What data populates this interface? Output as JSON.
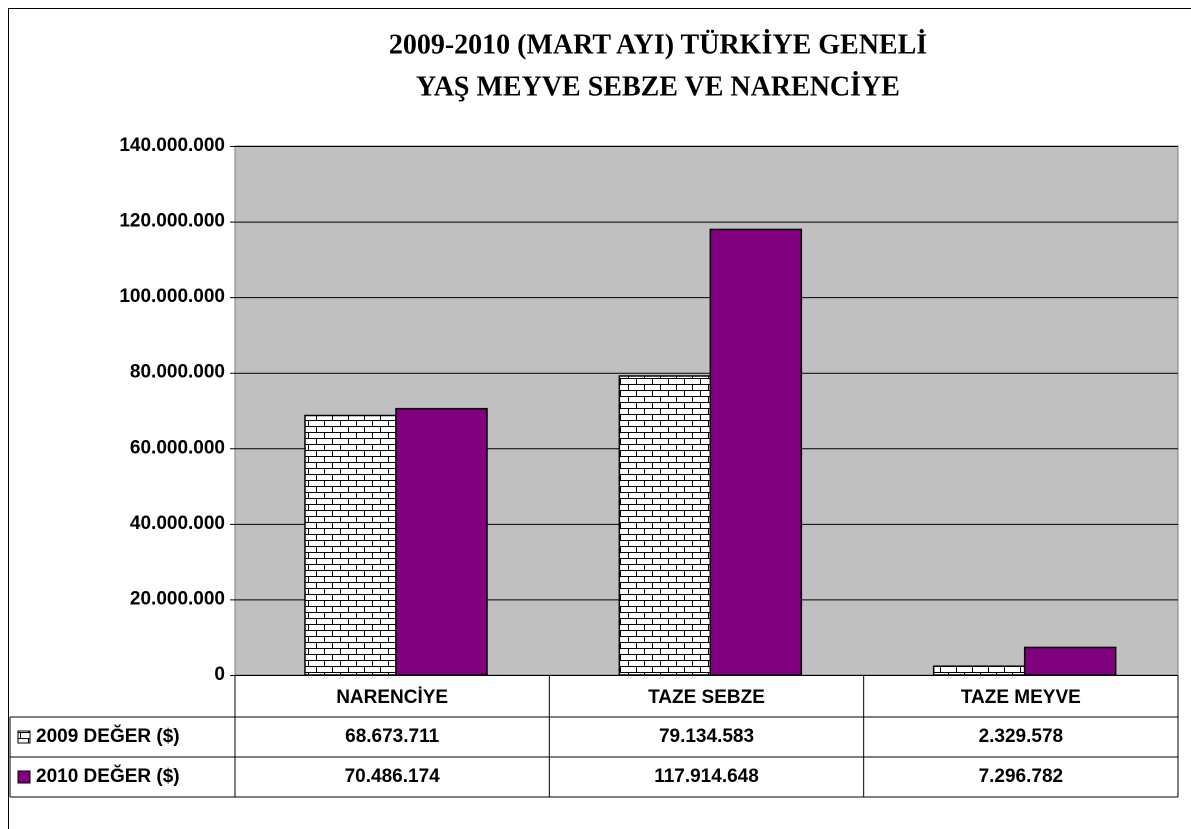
{
  "chart_data": {
    "type": "bar",
    "title": [
      "2009-2010 (MART AYI) TÜRKİYE GENELİ",
      "YAŞ MEYVE SEBZE VE NARENCİYE"
    ],
    "categories": [
      "NARENCİYE",
      "TAZE SEBZE",
      "TAZE MEYVE"
    ],
    "series": [
      {
        "name": "2009 DEĞER ($)",
        "color": "#ffffff",
        "pattern": "brick",
        "values": [
          68673711,
          79134583,
          2329578
        ],
        "value_labels": [
          "68.673.711",
          "79.134.583",
          "2.329.578"
        ]
      },
      {
        "name": "2010 DEĞER ($)",
        "color": "#800080",
        "values": [
          70486174,
          117914648,
          7296782
        ],
        "value_labels": [
          "70.486.174",
          "117.914.648",
          "7.296.782"
        ]
      }
    ],
    "ylim": [
      0,
      140000000
    ],
    "yticks": [
      0,
      {
        "value": 20000000,
        "label": "20.000.000"
      },
      {
        "value": 40000000,
        "label": "40.000.000"
      },
      {
        "value": 60000000,
        "label": "60.000.000"
      },
      {
        "value": 80000000,
        "label": "80.000.000"
      },
      {
        "value": 100000000,
        "label": "100.000.000"
      },
      {
        "value": 120000000,
        "label": "120.000.000"
      },
      {
        "value": 140000000,
        "label": "140.000.000"
      }
    ],
    "grid": true,
    "plot_background": "#c0c0c0"
  }
}
